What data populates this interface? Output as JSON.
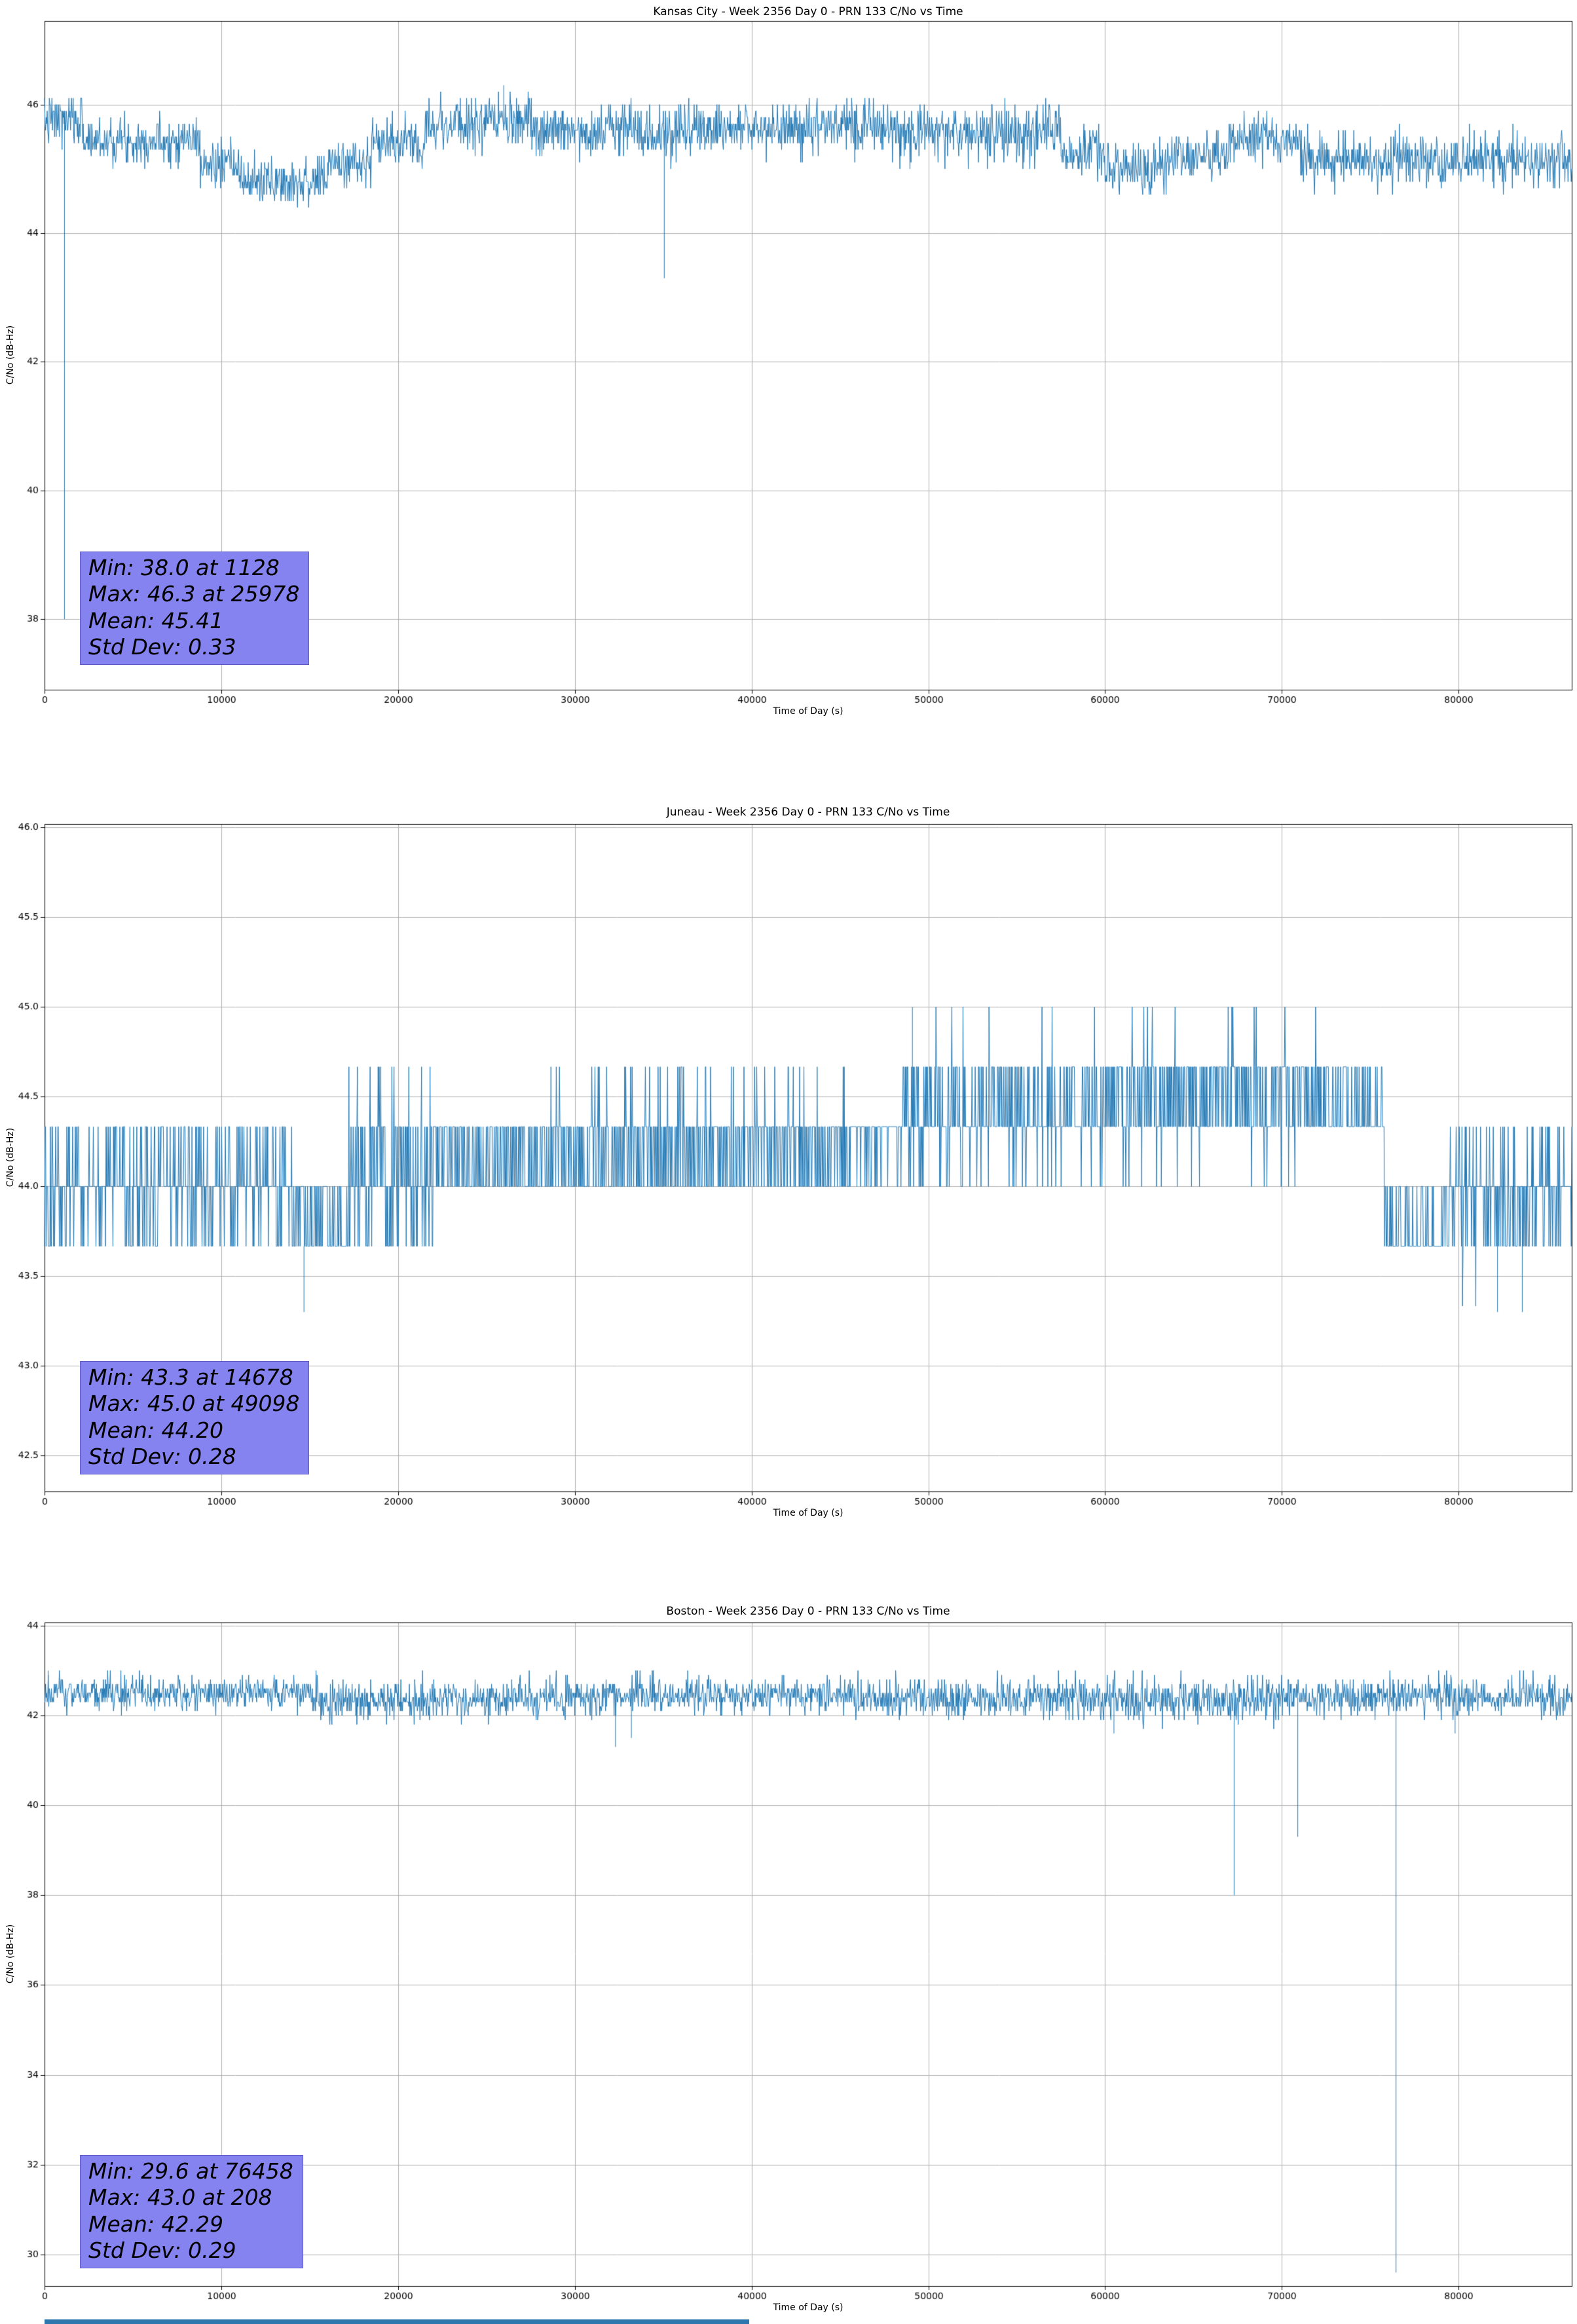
{
  "colors": {
    "line": "#1f77b4",
    "grid": "#b0b0b0",
    "spine": "#000000",
    "stats_box_bg": "#8583f0",
    "stats_box_border": "#5a58c8",
    "partial_strip": "#2e76ae",
    "background": "#ffffff"
  },
  "chart_data": [
    {
      "type": "line",
      "title": "Kansas City - Week 2356 Day 0 - PRN 133 C/No vs Time",
      "xlabel": "Time of Day (s)",
      "ylabel": "C/No (dB-Hz)",
      "xlim": [
        0,
        86400
      ],
      "ylim": [
        36.9,
        47.3
      ],
      "xticks": [
        0,
        10000,
        20000,
        30000,
        40000,
        50000,
        60000,
        70000,
        80000
      ],
      "xtick_labels": [
        "0",
        "10000",
        "20000",
        "30000",
        "40000",
        "50000",
        "60000",
        "70000",
        "80000"
      ],
      "yticks": [
        38,
        40,
        42,
        44,
        46
      ],
      "ytick_labels": [
        "38",
        "40",
        "42",
        "44",
        "46"
      ],
      "grid": true,
      "legend": null,
      "stats": {
        "min": 38.0,
        "min_t": 1128,
        "max": 46.3,
        "max_t": 25978,
        "mean": 45.41,
        "std": 0.33
      },
      "stats_lines": [
        "Min: 38.0 at 1128",
        "Max: 46.3 at 25978",
        "Mean: 45.41",
        "Std Dev: 0.33"
      ],
      "seed": 7,
      "step": 30,
      "quant": 10,
      "segments": [
        {
          "t0": 0,
          "t1": 2200,
          "m": 45.75,
          "s": 0.2,
          "lo": 45.3,
          "hi": 46.1
        },
        {
          "t0": 2200,
          "t1": 8800,
          "m": 45.45,
          "s": 0.18,
          "lo": 45.0,
          "hi": 45.9
        },
        {
          "t0": 8800,
          "t1": 11000,
          "m": 45.05,
          "s": 0.18,
          "lo": 44.6,
          "hi": 45.5
        },
        {
          "t0": 11000,
          "t1": 16000,
          "m": 44.8,
          "s": 0.18,
          "lo": 44.3,
          "hi": 45.3
        },
        {
          "t0": 16000,
          "t1": 18500,
          "m": 45.1,
          "s": 0.18,
          "lo": 44.7,
          "hi": 45.5
        },
        {
          "t0": 18500,
          "t1": 21500,
          "m": 45.4,
          "s": 0.18,
          "lo": 45.0,
          "hi": 45.9
        },
        {
          "t0": 21500,
          "t1": 27500,
          "m": 45.7,
          "s": 0.2,
          "lo": 45.2,
          "hi": 46.2
        },
        {
          "t0": 27500,
          "t1": 34000,
          "m": 45.6,
          "s": 0.2,
          "lo": 45.1,
          "hi": 46.1
        },
        {
          "t0": 34000,
          "t1": 36000,
          "m": 45.55,
          "s": 0.2,
          "lo": 45.0,
          "hi": 46.0
        },
        {
          "t0": 36000,
          "t1": 48000,
          "m": 45.65,
          "s": 0.2,
          "lo": 45.1,
          "hi": 46.1
        },
        {
          "t0": 48000,
          "t1": 57500,
          "m": 45.6,
          "s": 0.22,
          "lo": 45.0,
          "hi": 46.1
        },
        {
          "t0": 57500,
          "t1": 60000,
          "m": 45.25,
          "s": 0.2,
          "lo": 44.8,
          "hi": 45.7
        },
        {
          "t0": 60000,
          "t1": 63500,
          "m": 45.0,
          "s": 0.2,
          "lo": 44.6,
          "hi": 45.5
        },
        {
          "t0": 63500,
          "t1": 67000,
          "m": 45.2,
          "s": 0.18,
          "lo": 44.8,
          "hi": 45.6
        },
        {
          "t0": 67000,
          "t1": 71000,
          "m": 45.45,
          "s": 0.18,
          "lo": 45.0,
          "hi": 45.9
        },
        {
          "t0": 71000,
          "t1": 86400,
          "m": 45.15,
          "s": 0.2,
          "lo": 44.5,
          "hi": 45.7
        }
      ],
      "spikes": [
        {
          "t": 1128,
          "v": 38.0
        },
        {
          "t": 25978,
          "v": 46.3
        },
        {
          "t": 35060,
          "v": 43.3
        }
      ]
    },
    {
      "type": "line",
      "title": "Juneau - Week 2356 Day 0 - PRN 133 C/No vs Time",
      "xlabel": "Time of Day (s)",
      "ylabel": "C/No (dB-Hz)",
      "xlim": [
        0,
        86400
      ],
      "ylim": [
        42.3,
        46.02
      ],
      "xticks": [
        0,
        10000,
        20000,
        30000,
        40000,
        50000,
        60000,
        70000,
        80000
      ],
      "xtick_labels": [
        "0",
        "10000",
        "20000",
        "30000",
        "40000",
        "50000",
        "60000",
        "70000",
        "80000"
      ],
      "yticks": [
        42.5,
        43.0,
        43.5,
        44.0,
        44.5,
        45.0,
        45.5,
        46.0
      ],
      "ytick_labels": [
        "42.5",
        "43.0",
        "43.5",
        "44.0",
        "44.5",
        "45.0",
        "45.5",
        "46.0"
      ],
      "grid": true,
      "legend": null,
      "stats": {
        "min": 43.3,
        "min_t": 14678,
        "max": 45.0,
        "max_t": 49098,
        "mean": 44.2,
        "std": 0.28
      },
      "stats_lines": [
        "Min: 43.3 at 14678",
        "Max: 45.0 at 49098",
        "Mean: 44.20",
        "Std Dev: 0.28"
      ],
      "seed": 13,
      "step": 30,
      "quant": 3,
      "segments": [
        {
          "t0": 0,
          "t1": 2500,
          "m": 43.95,
          "s": 0.25,
          "lo": 43.6,
          "hi": 44.35
        },
        {
          "t0": 2500,
          "t1": 14000,
          "m": 44.0,
          "s": 0.22,
          "lo": 43.6,
          "hi": 44.35
        },
        {
          "t0": 14000,
          "t1": 17200,
          "m": 43.8,
          "s": 0.2,
          "lo": 43.6,
          "hi": 44.0
        },
        {
          "t0": 17200,
          "t1": 22000,
          "m": 44.05,
          "s": 0.28,
          "lo": 43.6,
          "hi": 44.67
        },
        {
          "t0": 22000,
          "t1": 28500,
          "m": 44.15,
          "s": 0.15,
          "lo": 44.0,
          "hi": 44.35
        },
        {
          "t0": 28500,
          "t1": 45500,
          "m": 44.2,
          "s": 0.22,
          "lo": 43.95,
          "hi": 44.67
        },
        {
          "t0": 45500,
          "t1": 48500,
          "m": 44.3,
          "s": 0.12,
          "lo": 44.0,
          "hi": 44.4
        },
        {
          "t0": 48500,
          "t1": 60000,
          "m": 44.42,
          "s": 0.2,
          "lo": 44.0,
          "hi": 45.0
        },
        {
          "t0": 60000,
          "t1": 72000,
          "m": 44.5,
          "s": 0.18,
          "lo": 44.0,
          "hi": 45.0
        },
        {
          "t0": 72000,
          "t1": 75800,
          "m": 44.45,
          "s": 0.12,
          "lo": 44.3,
          "hi": 44.67
        },
        {
          "t0": 75800,
          "t1": 79500,
          "m": 43.8,
          "s": 0.15,
          "lo": 43.6,
          "hi": 44.0
        },
        {
          "t0": 79500,
          "t1": 86400,
          "m": 43.95,
          "s": 0.22,
          "lo": 43.3,
          "hi": 44.35
        }
      ],
      "spikes": [
        {
          "t": 14678,
          "v": 43.3
        },
        {
          "t": 49098,
          "v": 45.0
        },
        {
          "t": 82200,
          "v": 43.3
        },
        {
          "t": 83600,
          "v": 43.3
        }
      ]
    },
    {
      "type": "line",
      "title": "Boston - Week 2356 Day 0 - PRN 133 C/No vs Time",
      "xlabel": "Time of Day (s)",
      "ylabel": "C/No (dB-Hz)",
      "xlim": [
        0,
        86400
      ],
      "ylim": [
        29.3,
        44.07
      ],
      "xticks": [
        0,
        10000,
        20000,
        30000,
        40000,
        50000,
        60000,
        70000,
        80000
      ],
      "xtick_labels": [
        "0",
        "10000",
        "20000",
        "30000",
        "40000",
        "50000",
        "60000",
        "70000",
        "80000"
      ],
      "yticks": [
        30,
        32,
        34,
        36,
        38,
        40,
        42,
        44
      ],
      "ytick_labels": [
        "30",
        "32",
        "34",
        "36",
        "38",
        "40",
        "42",
        "44"
      ],
      "grid": true,
      "legend": null,
      "stats": {
        "min": 29.6,
        "min_t": 76458,
        "max": 43.0,
        "max_t": 208,
        "mean": 42.29,
        "std": 0.29
      },
      "stats_lines": [
        "Min: 29.6 at 76458",
        "Max: 43.0 at 208",
        "Mean: 42.29",
        "Std Dev: 0.29"
      ],
      "seed": 21,
      "step": 30,
      "quant": 10,
      "segments": [
        {
          "t0": 0,
          "t1": 15000,
          "m": 42.5,
          "s": 0.2,
          "lo": 42.0,
          "hi": 43.0
        },
        {
          "t0": 15000,
          "t1": 30000,
          "m": 42.35,
          "s": 0.22,
          "lo": 41.8,
          "hi": 43.0
        },
        {
          "t0": 30000,
          "t1": 45000,
          "m": 42.45,
          "s": 0.2,
          "lo": 41.9,
          "hi": 43.0
        },
        {
          "t0": 45000,
          "t1": 60000,
          "m": 42.4,
          "s": 0.22,
          "lo": 41.9,
          "hi": 43.0
        },
        {
          "t0": 60000,
          "t1": 70000,
          "m": 42.35,
          "s": 0.25,
          "lo": 41.7,
          "hi": 43.0
        },
        {
          "t0": 70000,
          "t1": 86400,
          "m": 42.4,
          "s": 0.22,
          "lo": 41.9,
          "hi": 43.0
        }
      ],
      "spikes": [
        {
          "t": 208,
          "v": 43.0
        },
        {
          "t": 32300,
          "v": 41.3
        },
        {
          "t": 33200,
          "v": 41.5
        },
        {
          "t": 60500,
          "v": 41.6
        },
        {
          "t": 67300,
          "v": 38.0
        },
        {
          "t": 70900,
          "v": 39.3
        },
        {
          "t": 76458,
          "v": 29.6
        },
        {
          "t": 79800,
          "v": 41.6
        }
      ]
    }
  ]
}
